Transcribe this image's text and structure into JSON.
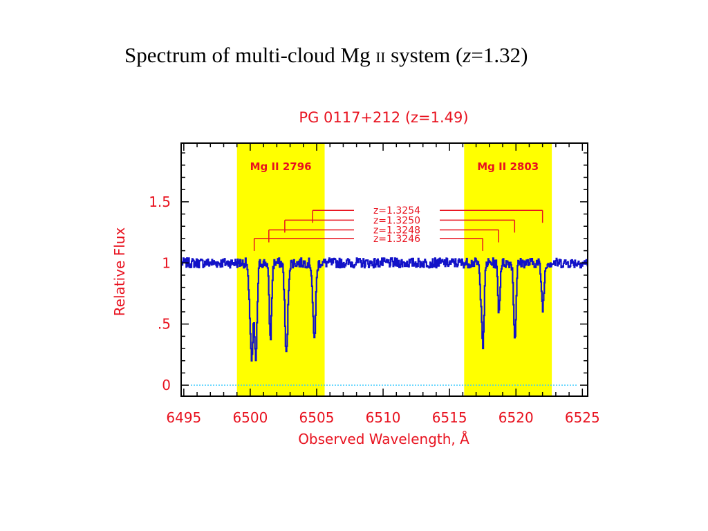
{
  "slide": {
    "title_prefix": "Spectrum of multi-cloud Mg",
    "title_ion": "II",
    "title_middle": " system (",
    "title_z": "z",
    "title_suffix": "=1.32)"
  },
  "colors": {
    "axis_label": "#e8121f",
    "spectrum": "#1212c8",
    "band": "#ffff00",
    "component_line": "#e8121f",
    "zero_line": "#33c9ff",
    "frame": "#000000"
  },
  "chart_data": {
    "type": "line",
    "title": "PG 0117+212 (z=1.49)",
    "xlabel": "Observed Wavelength, Å",
    "ylabel": "Relative Flux",
    "xlim": [
      6494.8,
      6525.4
    ],
    "ylim": [
      -0.09,
      1.98
    ],
    "x_ticks": [
      {
        "value": 6495,
        "label": "6495"
      },
      {
        "value": 6500,
        "label": "6500"
      },
      {
        "value": 6505,
        "label": "6505"
      },
      {
        "value": 6510,
        "label": "6510"
      },
      {
        "value": 6515,
        "label": "6515"
      },
      {
        "value": 6520,
        "label": "6520"
      },
      {
        "value": 6525,
        "label": "6525"
      }
    ],
    "y_ticks": [
      {
        "value": 0,
        "label": "0"
      },
      {
        "value": 0.5,
        "label": ".5"
      },
      {
        "value": 1,
        "label": "1"
      },
      {
        "value": 1.5,
        "label": "1.5"
      }
    ],
    "zero_line": 0,
    "bands": [
      {
        "label": "Mg II 2796",
        "x0": 6499.0,
        "x1": 6505.6
      },
      {
        "label": "Mg II 2803",
        "x0": 6516.1,
        "x1": 6522.7
      }
    ],
    "components": [
      {
        "label": "z=1.3246",
        "x_2796": 6500.3,
        "x_2803": 6517.5,
        "y": 1.2
      },
      {
        "label": "z=1.3248",
        "x_2796": 6501.4,
        "x_2803": 6518.7,
        "y": 1.27
      },
      {
        "label": "z=1.3250",
        "x_2796": 6502.6,
        "x_2803": 6519.9,
        "y": 1.35
      },
      {
        "label": "z=1.3254",
        "x_2796": 6504.7,
        "x_2803": 6522.0,
        "y": 1.43
      }
    ],
    "continuum": 1.0,
    "absorption_lines": [
      {
        "x": 6500.1,
        "depth": 0.78,
        "width": 0.1
      },
      {
        "x": 6500.4,
        "depth": 0.78,
        "width": 0.1
      },
      {
        "x": 6501.5,
        "depth": 0.62,
        "width": 0.09
      },
      {
        "x": 6502.7,
        "depth": 0.75,
        "width": 0.11
      },
      {
        "x": 6504.8,
        "depth": 0.62,
        "width": 0.11
      },
      {
        "x": 6499.9,
        "depth": 0.22,
        "width": 0.08
      },
      {
        "x": 6517.5,
        "depth": 0.68,
        "width": 0.09
      },
      {
        "x": 6518.7,
        "depth": 0.4,
        "width": 0.08
      },
      {
        "x": 6519.9,
        "depth": 0.62,
        "width": 0.09
      },
      {
        "x": 6522.0,
        "depth": 0.36,
        "width": 0.1
      },
      {
        "x": 6517.3,
        "depth": 0.18,
        "width": 0.06
      }
    ],
    "noise_amplitude": 0.02,
    "grid": false,
    "legend": "none"
  }
}
